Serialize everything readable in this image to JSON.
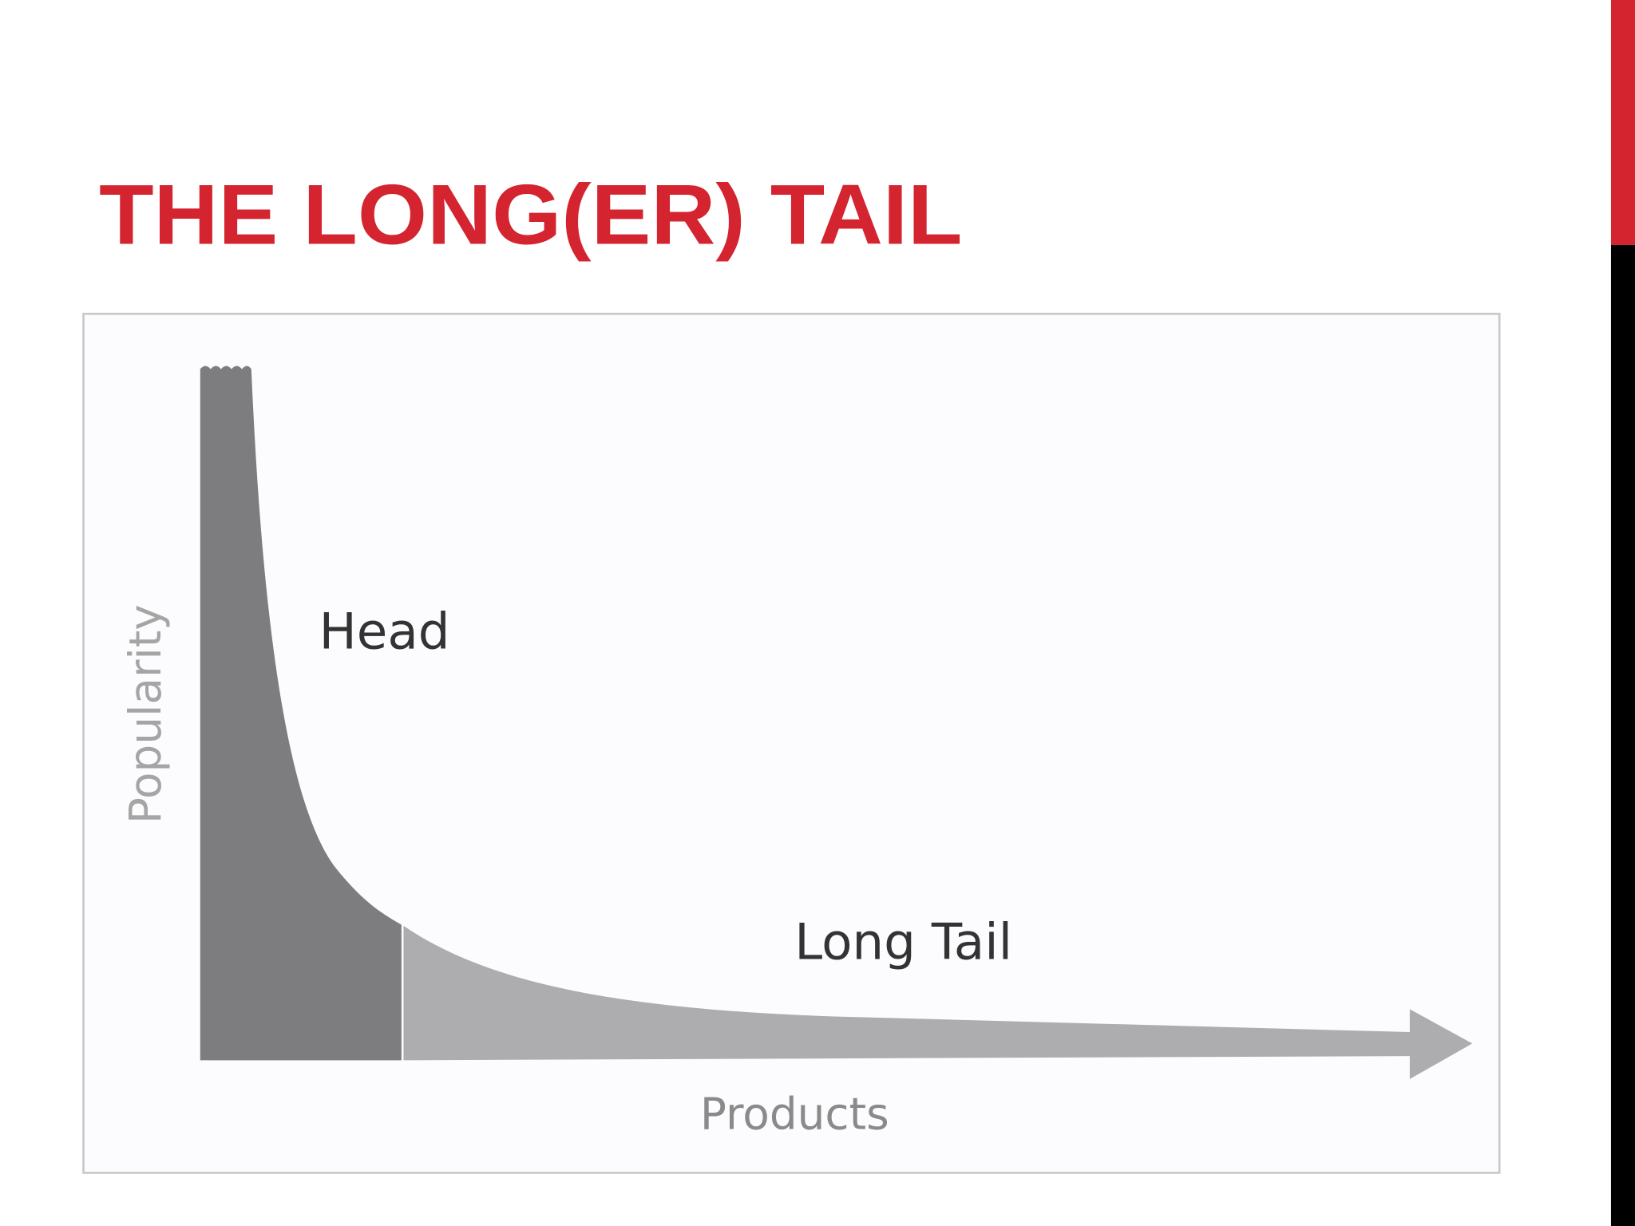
{
  "header": {
    "title": "THE LONG(ER) TAIL"
  },
  "diagram": {
    "head_label": "Head",
    "tail_label": "Long Tail",
    "y_axis_label": "Popularity",
    "x_axis_label": "Products"
  }
}
